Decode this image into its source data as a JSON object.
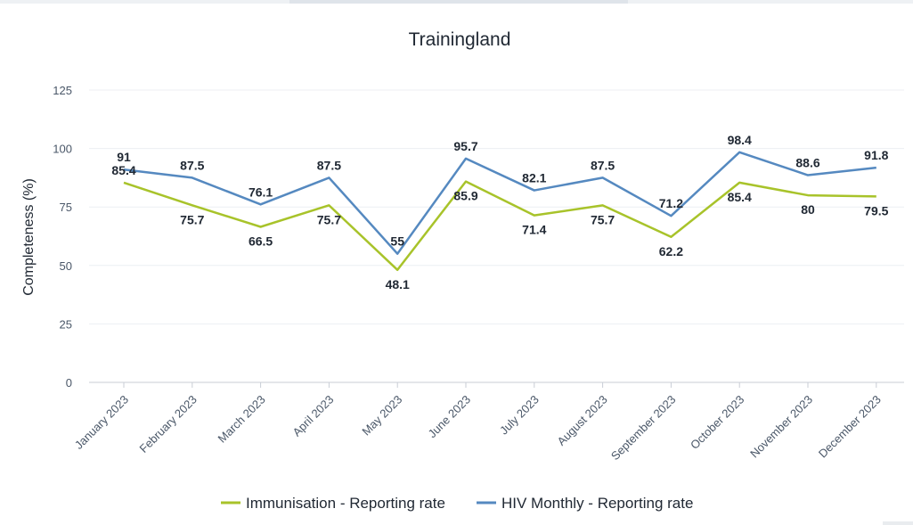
{
  "chart_data": {
    "type": "line",
    "title": "Trainingland",
    "ylabel": "Completeness (%)",
    "xlabel": "",
    "ylim": [
      0,
      125
    ],
    "yticks": [
      0,
      25,
      50,
      75,
      100,
      125
    ],
    "grid": true,
    "legend_position": "bottom",
    "categories": [
      "January 2023",
      "February 2023",
      "March 2023",
      "April 2023",
      "May 2023",
      "June 2023",
      "July 2023",
      "August 2023",
      "September 2023",
      "October 2023",
      "November 2023",
      "December 2023"
    ],
    "series": [
      {
        "name": "Immunisation - Reporting rate",
        "color": "#a8c32a",
        "values": [
          85.4,
          75.7,
          66.5,
          75.7,
          48.1,
          85.9,
          71.4,
          75.7,
          62.2,
          85.4,
          80,
          79.5
        ]
      },
      {
        "name": "HIV Monthly - Reporting rate",
        "color": "#5589c0",
        "values": [
          91,
          87.5,
          76.1,
          87.5,
          55,
          95.7,
          82.1,
          87.5,
          71.2,
          98.4,
          88.6,
          91.8
        ]
      }
    ]
  }
}
